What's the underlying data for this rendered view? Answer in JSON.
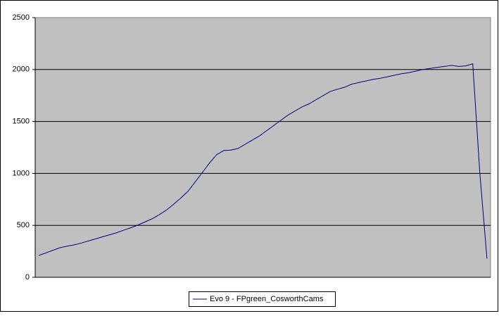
{
  "chart_data": {
    "type": "line",
    "categories": [
      null,
      null,
      null,
      null,
      null,
      null,
      null,
      null,
      null,
      null,
      null,
      null,
      null,
      null,
      null,
      null,
      null,
      null,
      null,
      null,
      null,
      null,
      null,
      null,
      null,
      null,
      null,
      null,
      null,
      null,
      null,
      null,
      null,
      null,
      null,
      null,
      null,
      null,
      null,
      null,
      null,
      null,
      null,
      null,
      null,
      null,
      null,
      null,
      null,
      null,
      null,
      null,
      null,
      null,
      null,
      null,
      null,
      null,
      null,
      null,
      null,
      null,
      null,
      null
    ],
    "series": [
      {
        "name": "Evo 9 - FPgreen_CosworthCams",
        "color": "#000080",
        "values": [
          210,
          235,
          260,
          285,
          300,
          312,
          330,
          350,
          370,
          390,
          410,
          430,
          455,
          478,
          505,
          535,
          565,
          605,
          650,
          705,
          765,
          830,
          920,
          1010,
          1100,
          1180,
          1220,
          1225,
          1240,
          1280,
          1320,
          1360,
          1410,
          1460,
          1510,
          1560,
          1600,
          1640,
          1670,
          1710,
          1750,
          1790,
          1810,
          1830,
          1860,
          1875,
          1890,
          1905,
          1915,
          1930,
          1945,
          1960,
          1970,
          1985,
          2000,
          2010,
          2020,
          2030,
          2040,
          2030,
          2035,
          2055,
          1000,
          180
        ]
      }
    ],
    "ylim": [
      0,
      2500
    ],
    "yticks": [
      0,
      500,
      1000,
      1500,
      2000,
      2500
    ],
    "grid": true,
    "legend": "bottom"
  }
}
